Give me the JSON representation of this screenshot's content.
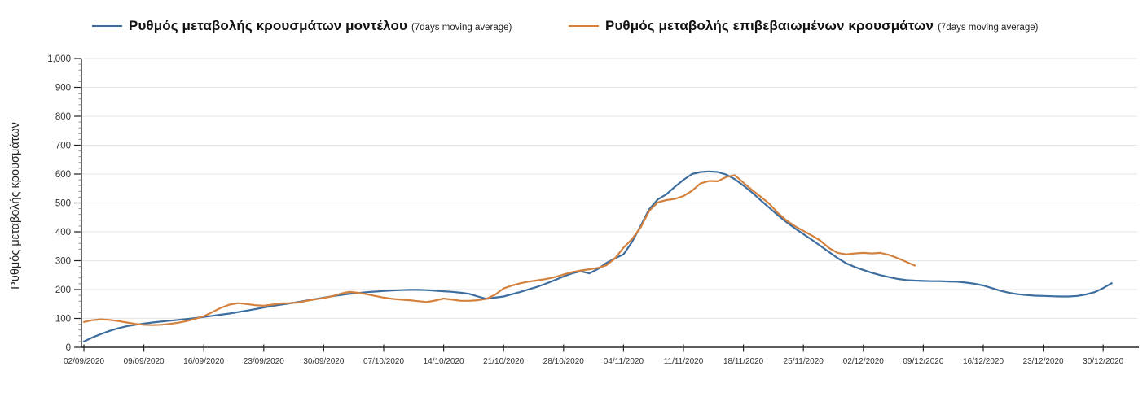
{
  "legend": {
    "items": [
      {
        "label": "Ρυθμός μεταβολής κρουσμάτων μοντέλου",
        "sublabel": "(7days moving average)",
        "color": "#3d6e9f"
      },
      {
        "label": "Ρυθμός μεταβολής επιβεβαιωμένων κρουσμάτων",
        "sublabel": "(7days moving average)",
        "color": "#d5813e"
      }
    ]
  },
  "chart_data": {
    "type": "line",
    "title": "",
    "xlabel": "",
    "ylabel": "Ρυθμός μεταβολής κρουσμάτων",
    "ylim": [
      0,
      1000
    ],
    "grid": "horizontal",
    "legend_position": "top",
    "y_tick_labels": [
      "0",
      "100",
      "200",
      "300",
      "400",
      "500",
      "600",
      "700",
      "800",
      "900",
      "1,000"
    ],
    "y_minor_tick_step": 20,
    "x_tick_labels": [
      "02/09/2020",
      "09/09/2020",
      "16/09/2020",
      "23/09/2020",
      "30/09/2020",
      "07/10/2020",
      "14/10/2020",
      "21/10/2020",
      "28/10/2020",
      "04/11/2020",
      "11/11/2020",
      "18/11/2020",
      "25/11/2020",
      "02/12/2020",
      "09/12/2020",
      "16/12/2020",
      "23/12/2020",
      "30/12/2020"
    ],
    "x_unit": "daily points starting 02/09/2020, one major tick per 7 days",
    "colors": {
      "axis": "#262626",
      "grid": "#e6e6e6",
      "tick_label": "#333333"
    },
    "series": [
      {
        "name": "Ρυθμός μεταβολής κρουσμάτων μοντέλου (7days moving average)",
        "color": "#3d6e9f",
        "start_date": "02/09/2020",
        "end_date": "31/12/2020",
        "values": [
          20,
          34,
          46,
          57,
          66,
          73,
          78,
          82,
          86,
          89,
          92,
          95,
          98,
          101,
          105,
          109,
          113,
          117,
          122,
          127,
          132,
          138,
          143,
          148,
          152,
          157,
          162,
          167,
          172,
          177,
          181,
          185,
          188,
          191,
          193,
          195,
          197,
          198,
          199,
          199,
          198,
          196,
          194,
          192,
          189,
          185,
          176,
          168,
          172,
          176,
          184,
          192,
          201,
          210,
          221,
          233,
          245,
          256,
          263,
          256,
          271,
          292,
          308,
          322,
          365,
          420,
          478,
          512,
          530,
          556,
          580,
          600,
          607,
          609,
          607,
          598,
          582,
          560,
          536,
          510,
          484,
          458,
          434,
          412,
          392,
          372,
          351,
          330,
          309,
          291,
          278,
          268,
          258,
          250,
          243,
          237,
          233,
          231,
          230,
          229,
          229,
          228,
          227,
          224,
          220,
          214,
          205,
          196,
          189,
          184,
          181,
          179,
          178,
          177,
          176,
          176,
          178,
          183,
          191,
          205,
          222
        ]
      },
      {
        "name": "Ρυθμός μεταβολής επιβεβαιωμένων κρουσμάτων (7days moving average)",
        "color": "#d5813e",
        "start_date": "02/09/2020",
        "end_date": "08/12/2020",
        "values": [
          88,
          94,
          97,
          95,
          91,
          86,
          81,
          78,
          77,
          78,
          81,
          85,
          91,
          99,
          108,
          122,
          137,
          148,
          153,
          150,
          146,
          144,
          148,
          152,
          153,
          155,
          161,
          166,
          171,
          177,
          186,
          192,
          189,
          184,
          178,
          172,
          168,
          165,
          163,
          160,
          157,
          162,
          169,
          165,
          161,
          161,
          163,
          168,
          182,
          204,
          214,
          222,
          228,
          232,
          237,
          243,
          252,
          260,
          266,
          270,
          275,
          284,
          308,
          345,
          375,
          415,
          472,
          502,
          510,
          514,
          524,
          542,
          568,
          576,
          575,
          590,
          596,
          570,
          545,
          522,
          498,
          466,
          440,
          420,
          403,
          387,
          369,
          344,
          327,
          322,
          325,
          327,
          325,
          327,
          320,
          309,
          296,
          283
        ]
      }
    ]
  }
}
